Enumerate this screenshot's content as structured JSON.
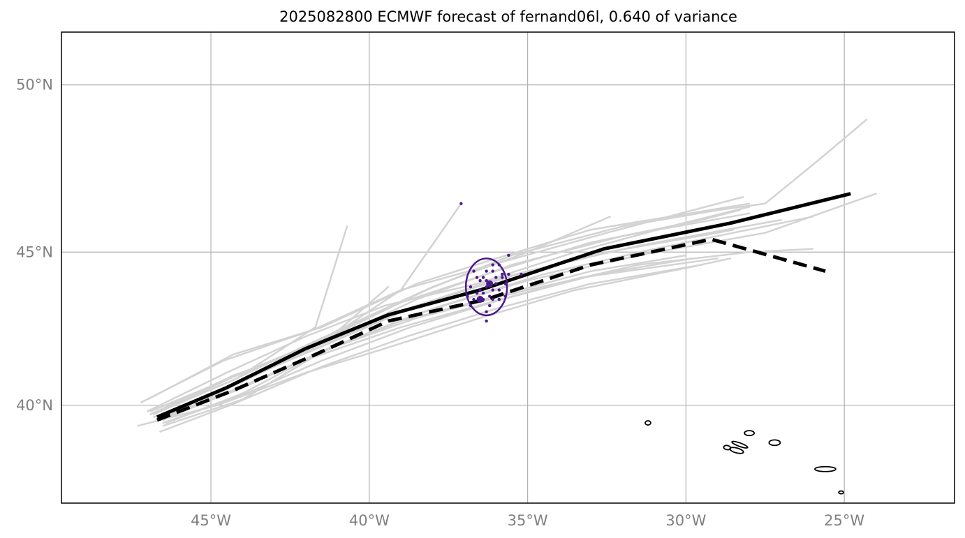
{
  "title": "2025082800 ECMWF forecast of fernand06l, 0.640 of variance",
  "chart_data": {
    "type": "map-track",
    "title": "2025082800 ECMWF forecast of fernand06l, 0.640 of variance",
    "extent": {
      "lon": [
        -49.72,
        -21.52
      ],
      "lat": [
        36.6,
        51.48
      ]
    },
    "grid": true,
    "x_ticks": [
      {
        "value": -45,
        "label": "45°W"
      },
      {
        "value": -40,
        "label": "40°W"
      },
      {
        "value": -35,
        "label": "35°W"
      },
      {
        "value": -30,
        "label": "30°W"
      },
      {
        "value": -25,
        "label": "25°W"
      }
    ],
    "y_ticks": [
      {
        "value": 40,
        "label": "40°N"
      },
      {
        "value": 45,
        "label": "45°N"
      },
      {
        "value": 50,
        "label": "50°N"
      }
    ],
    "colors": {
      "ensemble": "#d3d3d3",
      "mean": "#000000",
      "ellipse": "#4b1a8a",
      "grid": "#b0b0b0",
      "tick_label": "#808080"
    },
    "ensemble_mean_track": [
      [
        -46.7,
        39.6
      ],
      [
        -44.5,
        40.6
      ],
      [
        -42.0,
        41.9
      ],
      [
        -39.4,
        43.0
      ],
      [
        -36.5,
        43.8
      ],
      [
        -32.6,
        45.1
      ],
      [
        -28.6,
        45.9
      ],
      [
        -24.8,
        46.8
      ]
    ],
    "deterministic_track": [
      [
        -46.7,
        39.5
      ],
      [
        -44.3,
        40.5
      ],
      [
        -41.7,
        41.7
      ],
      [
        -39.4,
        42.8
      ],
      [
        -36.3,
        43.5
      ],
      [
        -33.0,
        44.6
      ],
      [
        -29.2,
        45.4
      ],
      [
        -25.6,
        44.4
      ]
    ],
    "ensemble_tracks": [
      [
        [
          -47.2,
          40.1
        ],
        [
          -44.6,
          41.5
        ],
        [
          -41.8,
          42.5
        ],
        [
          -39.0,
          43.8
        ],
        [
          -36.5,
          44.5
        ],
        [
          -32.5,
          45.6
        ],
        [
          -28.2,
          46.7
        ]
      ],
      [
        [
          -47.0,
          40.2
        ],
        [
          -44.3,
          41.7
        ],
        [
          -41.5,
          42.6
        ],
        [
          -38.5,
          44.0
        ],
        [
          -36.0,
          44.8
        ],
        [
          -33.0,
          45.7
        ],
        [
          -28.0,
          46.5
        ]
      ],
      [
        [
          -46.8,
          39.7
        ],
        [
          -44.2,
          40.9
        ],
        [
          -41.7,
          42.6
        ],
        [
          -40.7,
          45.8
        ]
      ],
      [
        [
          -46.9,
          39.8
        ],
        [
          -44.2,
          41.0
        ],
        [
          -41.2,
          42.3
        ],
        [
          -39.0,
          43.8
        ],
        [
          -37.1,
          46.5
        ]
      ],
      [
        [
          -46.5,
          39.5
        ],
        [
          -44.0,
          40.8
        ],
        [
          -41.3,
          42.2
        ],
        [
          -39.4,
          43.9
        ]
      ],
      [
        [
          -46.6,
          39.6
        ],
        [
          -43.8,
          40.9
        ],
        [
          -41.0,
          42.5
        ],
        [
          -38.0,
          43.9
        ],
        [
          -35.0,
          45.0
        ],
        [
          -32.4,
          46.1
        ]
      ],
      [
        [
          -46.6,
          39.8
        ],
        [
          -44.0,
          41.1
        ],
        [
          -41.0,
          42.4
        ],
        [
          -38.2,
          43.8
        ],
        [
          -35.5,
          44.9
        ],
        [
          -32.0,
          45.8
        ],
        [
          -29.0,
          46.3
        ],
        [
          -27.5,
          46.5
        ],
        [
          -25.7,
          47.9
        ],
        [
          -24.3,
          49.0
        ]
      ],
      [
        [
          -46.9,
          39.7
        ],
        [
          -44.3,
          41.0
        ],
        [
          -41.4,
          42.1
        ],
        [
          -38.5,
          43.5
        ],
        [
          -35.5,
          44.6
        ],
        [
          -32.0,
          45.5
        ],
        [
          -28.0,
          46.2
        ]
      ],
      [
        [
          -46.7,
          39.6
        ],
        [
          -44.1,
          40.8
        ],
        [
          -41.2,
          42.1
        ],
        [
          -38.5,
          43.3
        ],
        [
          -35.0,
          44.4
        ],
        [
          -31.5,
          45.2
        ],
        [
          -27.0,
          46.0
        ]
      ],
      [
        [
          -46.5,
          39.5
        ],
        [
          -43.9,
          40.7
        ],
        [
          -41.0,
          42.0
        ],
        [
          -38.0,
          43.2
        ],
        [
          -34.5,
          44.3
        ],
        [
          -31.0,
          45.1
        ],
        [
          -26.0,
          46.1
        ]
      ],
      [
        [
          -46.6,
          39.6
        ],
        [
          -44.0,
          40.6
        ],
        [
          -41.3,
          41.9
        ],
        [
          -38.3,
          43.1
        ],
        [
          -35.0,
          44.1
        ],
        [
          -31.5,
          44.9
        ],
        [
          -27.5,
          45.6
        ],
        [
          -24.0,
          46.8
        ]
      ],
      [
        [
          -46.4,
          39.4
        ],
        [
          -44.0,
          40.4
        ],
        [
          -41.5,
          41.8
        ],
        [
          -38.5,
          42.9
        ],
        [
          -35.0,
          43.8
        ],
        [
          -31.5,
          44.6
        ],
        [
          -28.0,
          45.0
        ],
        [
          -26.0,
          45.1
        ]
      ],
      [
        [
          -47.3,
          39.3
        ],
        [
          -44.8,
          40.0
        ],
        [
          -42.0,
          41.1
        ],
        [
          -39.5,
          41.9
        ],
        [
          -36.5,
          42.9
        ],
        [
          -33.5,
          43.8
        ],
        [
          -30.0,
          44.5
        ],
        [
          -28.6,
          44.8
        ]
      ],
      [
        [
          -46.6,
          39.1
        ],
        [
          -44.4,
          40.0
        ],
        [
          -41.5,
          41.3
        ],
        [
          -38.8,
          42.3
        ],
        [
          -36.0,
          43.2
        ],
        [
          -33.0,
          44.0
        ],
        [
          -29.5,
          44.6
        ]
      ],
      [
        [
          -46.5,
          39.3
        ],
        [
          -44.0,
          40.2
        ],
        [
          -41.8,
          41.6
        ],
        [
          -39.0,
          42.6
        ],
        [
          -36.2,
          43.4
        ],
        [
          -33.3,
          44.2
        ],
        [
          -29.0,
          44.8
        ]
      ],
      [
        [
          -46.8,
          39.6
        ],
        [
          -44.2,
          40.7
        ],
        [
          -41.6,
          42.0
        ],
        [
          -38.8,
          43.2
        ],
        [
          -35.8,
          44.2
        ],
        [
          -32.5,
          45.0
        ],
        [
          -29.0,
          45.6
        ],
        [
          -28.5,
          45.7
        ]
      ],
      [
        [
          -46.9,
          39.7
        ],
        [
          -44.4,
          40.8
        ],
        [
          -41.8,
          42.1
        ],
        [
          -39.0,
          43.4
        ],
        [
          -36.0,
          44.4
        ],
        [
          -33.0,
          45.3
        ],
        [
          -29.5,
          46.0
        ],
        [
          -28.3,
          46.3
        ]
      ],
      [
        [
          -46.7,
          39.5
        ],
        [
          -44.2,
          40.5
        ],
        [
          -41.7,
          41.7
        ],
        [
          -39.0,
          42.8
        ],
        [
          -36.0,
          43.6
        ],
        [
          -33.0,
          44.4
        ],
        [
          -30.0,
          44.9
        ]
      ],
      [
        [
          -46.5,
          39.4
        ],
        [
          -44.1,
          40.3
        ],
        [
          -41.5,
          41.5
        ],
        [
          -38.7,
          42.6
        ],
        [
          -35.8,
          43.5
        ],
        [
          -32.8,
          44.3
        ],
        [
          -29.8,
          44.8
        ]
      ],
      [
        [
          -47.0,
          39.8
        ],
        [
          -44.5,
          41.1
        ],
        [
          -42.0,
          42.3
        ],
        [
          -39.5,
          43.3
        ],
        [
          -36.6,
          44.0
        ],
        [
          -33.5,
          45.0
        ],
        [
          -30.5,
          45.8
        ],
        [
          -28.0,
          46.4
        ]
      ]
    ],
    "ellipse": {
      "center": [
        -36.3,
        43.9
      ],
      "lon_half_width": 0.65,
      "lat_half_height": 0.9
    },
    "ensemble_points": [
      [
        -37.1,
        46.5
      ],
      [
        -35.6,
        44.9
      ],
      [
        -36.1,
        44.6
      ],
      [
        -35.9,
        44.6
      ],
      [
        -36.7,
        44.4
      ],
      [
        -36.3,
        44.4
      ],
      [
        -36.1,
        44.4
      ],
      [
        -35.6,
        44.3
      ],
      [
        -35.8,
        44.3
      ],
      [
        -35.2,
        44.3
      ],
      [
        -36.6,
        44.2
      ],
      [
        -36.4,
        44.2
      ],
      [
        -36.3,
        44.1
      ],
      [
        -36.0,
        44.2
      ],
      [
        -35.8,
        44.2
      ],
      [
        -36.5,
        44.1
      ],
      [
        -36.2,
        44.0
      ],
      [
        -36.0,
        44.0
      ],
      [
        -35.7,
        44.0
      ],
      [
        -36.8,
        43.9
      ],
      [
        -36.3,
        43.9
      ],
      [
        -36.1,
        43.8
      ],
      [
        -35.9,
        43.8
      ],
      [
        -36.5,
        43.8
      ],
      [
        -36.6,
        43.7
      ],
      [
        -36.4,
        43.7
      ],
      [
        -36.2,
        43.6
      ],
      [
        -36.9,
        43.6
      ],
      [
        -36.4,
        43.5
      ],
      [
        -36.1,
        43.5
      ],
      [
        -35.9,
        43.5
      ],
      [
        -36.7,
        43.5
      ],
      [
        -35.7,
        43.6
      ],
      [
        -36.8,
        43.3
      ],
      [
        -36.2,
        43.3
      ],
      [
        -36.3,
        43.1
      ],
      [
        -36.3,
        42.8
      ]
    ],
    "ensemble_points_large": [
      [
        -36.2,
        44.0
      ],
      [
        -36.5,
        43.5
      ]
    ],
    "coastlines": [
      {
        "name": "flores-corvo",
        "lon": -31.2,
        "lat": 39.4
      },
      {
        "name": "graciosa",
        "lon": -28.0,
        "lat": 39.05
      },
      {
        "name": "sao-jorge",
        "lon": -28.3,
        "lat": 38.65
      },
      {
        "name": "faial",
        "lon": -28.7,
        "lat": 38.55
      },
      {
        "name": "pico",
        "lon": -28.4,
        "lat": 38.45
      },
      {
        "name": "terceira",
        "lon": -27.2,
        "lat": 38.72
      },
      {
        "name": "sao-miguel",
        "lon": -25.6,
        "lat": 37.8
      },
      {
        "name": "santa-maria",
        "lon": -25.1,
        "lat": 36.98
      }
    ]
  }
}
